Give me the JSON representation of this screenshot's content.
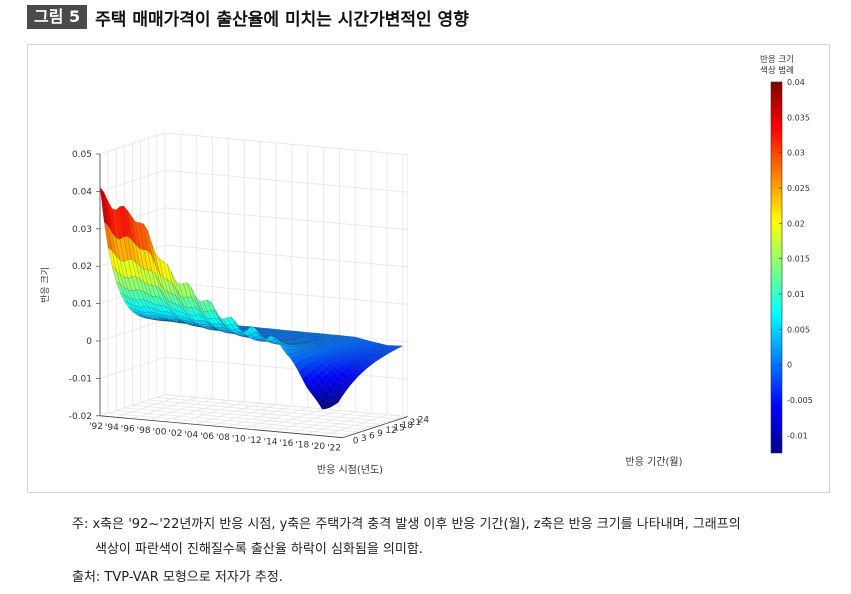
{
  "figure": {
    "number": "그림 5",
    "title": "주택 매매가격이 출산율에 미치는 시간가변적인 영향"
  },
  "chart_data": {
    "type": "surface",
    "zlabel": "반응 크기",
    "xlabel": "반응 시점(년도)",
    "ylabel": "반응 기간(월)",
    "x_ticks": [
      "'92",
      "'94",
      "'96",
      "'98",
      "'00",
      "'02",
      "'04",
      "'06",
      "'08",
      "'10",
      "'12",
      "'14",
      "'16",
      "'18",
      "'20",
      "'22"
    ],
    "y_ticks": [
      "0",
      "3",
      "6",
      "9",
      "12",
      "15",
      "18",
      "21",
      "24"
    ],
    "z_ticks": [
      "-0.02",
      "-0.01",
      "0",
      "0.01",
      "0.02",
      "0.03",
      "0.04",
      "0.05"
    ],
    "zlim": [
      -0.02,
      0.05
    ],
    "colorbar": {
      "title_line1": "반응 크기",
      "title_line2": "색상 범례",
      "ticks": [
        "0.04",
        "0.035",
        "0.03",
        "0.025",
        "0.02",
        "0.015",
        "0.01",
        "0.005",
        "0",
        "-0.005",
        "-0.01"
      ],
      "range": [
        -0.0125,
        0.04
      ]
    },
    "front_edge_y0": {
      "years": [
        1992,
        1994,
        1996,
        1998,
        2000,
        2002,
        2004,
        2006,
        2008,
        2010,
        2012,
        2014,
        2016,
        2018,
        2020,
        2022
      ],
      "values": [
        0.04,
        0.036,
        0.035,
        0.03,
        0.022,
        0.018,
        0.015,
        0.012,
        0.009,
        0.007,
        0.006,
        0.005,
        0.0,
        -0.007,
        -0.013,
        -0.011
      ]
    },
    "back_edge_y24": {
      "years": [
        1992,
        2022
      ],
      "values": [
        0.0,
        0.0
      ]
    },
    "grid": true
  },
  "notes": {
    "line1": "주: x축은 '92~'22년까지 반응 시점, y축은 주택가격 충격 발생 이후 반응 기간(월), z축은 반응 크기를 나타내며, 그래프의",
    "line2": "색상이 파란색이 진해질수록 출산율 하락이 심화됨을 의미함.",
    "source": "출처: TVP-VAR 모형으로 저자가 추정."
  }
}
